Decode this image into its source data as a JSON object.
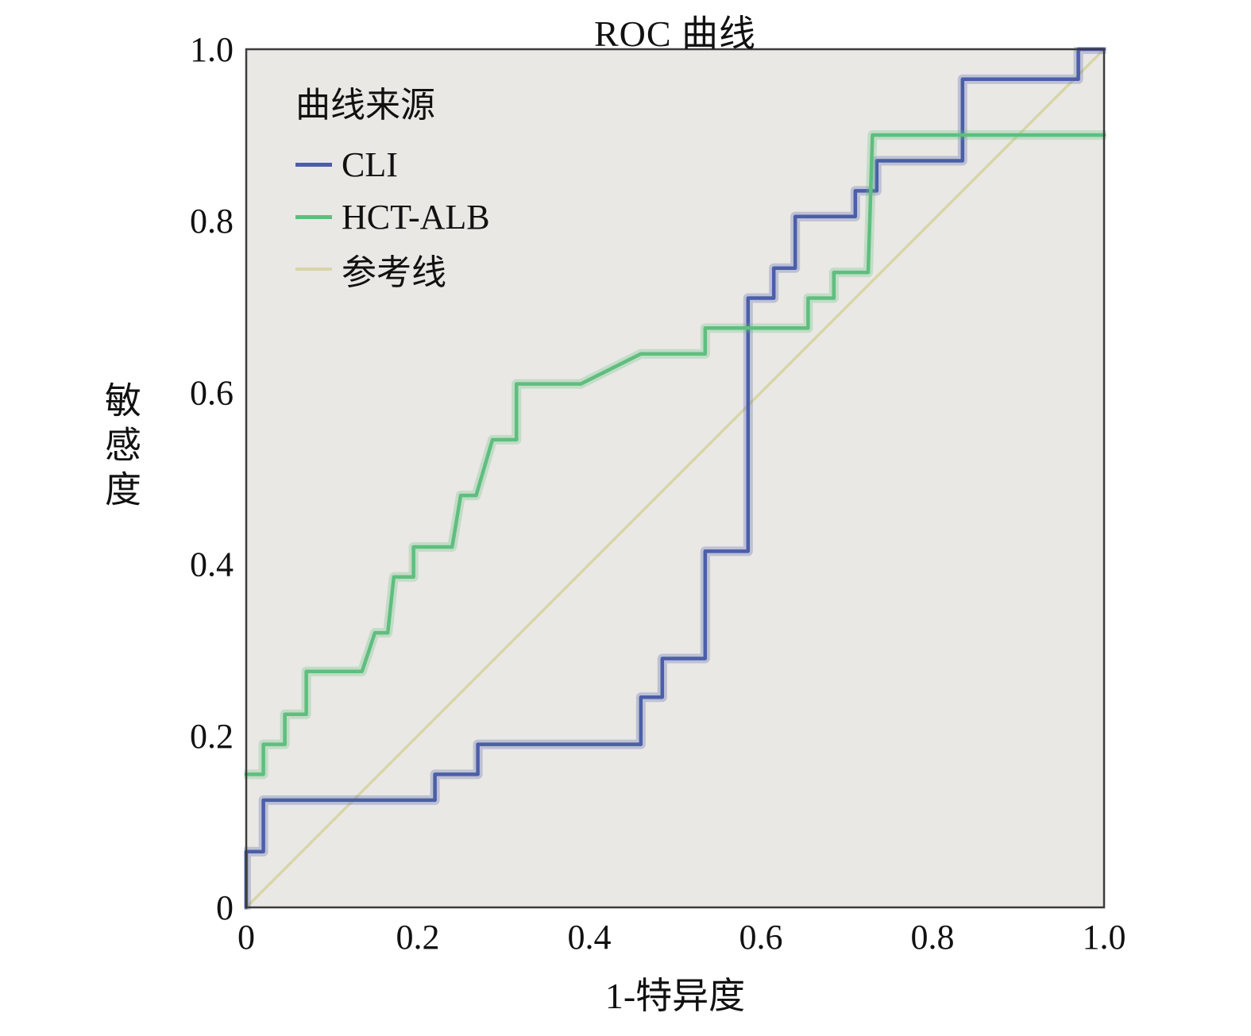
{
  "title": "ROC 曲线",
  "axes": {
    "x_label": "1-特异度",
    "y_label": "敏感度",
    "x_ticks": [
      "0",
      "0.2",
      "0.4",
      "0.6",
      "0.8",
      "1.0"
    ],
    "y_ticks": [
      "0",
      "0.2",
      "0.4",
      "0.6",
      "0.8",
      "1.0"
    ]
  },
  "legend": {
    "title": "曲线来源",
    "items": [
      {
        "label": "CLI",
        "color": "#4b5ea9"
      },
      {
        "label": "HCT-ALB",
        "color": "#5fbe7e"
      },
      {
        "label": "参考线",
        "color": "#d8d5a8"
      }
    ]
  },
  "chart_data": {
    "type": "line",
    "subtype": "roc-step-curves",
    "title": "ROC 曲线",
    "xlabel": "1-特异度",
    "ylabel": "敏感度",
    "xlim": [
      0,
      1
    ],
    "ylim": [
      0,
      1
    ],
    "x_ticks": [
      0,
      0.2,
      0.4,
      0.6,
      0.8,
      1.0
    ],
    "y_ticks": [
      0,
      0.2,
      0.4,
      0.6,
      0.8,
      1.0
    ],
    "grid": false,
    "legend_position": "top-left-inside",
    "legend_title": "曲线来源",
    "plot_bg": "#e9e8e4",
    "border_color": "#3c3c3c",
    "text_color": "#111111",
    "reference_line": {
      "name": "参考线",
      "color": "#d8d5a8",
      "points": [
        [
          0,
          0
        ],
        [
          1,
          1
        ]
      ]
    },
    "series": [
      {
        "name": "CLI",
        "color": "#4b5ea9",
        "points": [
          [
            0,
            0
          ],
          [
            0,
            0.065
          ],
          [
            0.02,
            0.065
          ],
          [
            0.02,
            0.125
          ],
          [
            0.22,
            0.125
          ],
          [
            0.22,
            0.155
          ],
          [
            0.27,
            0.155
          ],
          [
            0.27,
            0.19
          ],
          [
            0.46,
            0.19
          ],
          [
            0.46,
            0.245
          ],
          [
            0.485,
            0.245
          ],
          [
            0.485,
            0.29
          ],
          [
            0.535,
            0.29
          ],
          [
            0.535,
            0.415
          ],
          [
            0.585,
            0.415
          ],
          [
            0.585,
            0.71
          ],
          [
            0.615,
            0.71
          ],
          [
            0.615,
            0.745
          ],
          [
            0.64,
            0.745
          ],
          [
            0.64,
            0.805
          ],
          [
            0.71,
            0.805
          ],
          [
            0.71,
            0.835
          ],
          [
            0.735,
            0.835
          ],
          [
            0.735,
            0.87
          ],
          [
            0.835,
            0.87
          ],
          [
            0.835,
            0.965
          ],
          [
            0.97,
            0.965
          ],
          [
            0.97,
            1
          ],
          [
            1,
            1
          ]
        ]
      },
      {
        "name": "HCT-ALB",
        "color": "#5fbe7e",
        "points": [
          [
            0,
            0.155
          ],
          [
            0.02,
            0.155
          ],
          [
            0.02,
            0.19
          ],
          [
            0.045,
            0.19
          ],
          [
            0.045,
            0.225
          ],
          [
            0.07,
            0.225
          ],
          [
            0.07,
            0.275
          ],
          [
            0.135,
            0.275
          ],
          [
            0.15,
            0.32
          ],
          [
            0.165,
            0.32
          ],
          [
            0.172,
            0.385
          ],
          [
            0.195,
            0.385
          ],
          [
            0.195,
            0.42
          ],
          [
            0.24,
            0.42
          ],
          [
            0.25,
            0.48
          ],
          [
            0.268,
            0.48
          ],
          [
            0.287,
            0.545
          ],
          [
            0.315,
            0.545
          ],
          [
            0.315,
            0.61
          ],
          [
            0.39,
            0.61
          ],
          [
            0.46,
            0.645
          ],
          [
            0.535,
            0.645
          ],
          [
            0.535,
            0.675
          ],
          [
            0.655,
            0.675
          ],
          [
            0.655,
            0.71
          ],
          [
            0.685,
            0.71
          ],
          [
            0.685,
            0.74
          ],
          [
            0.725,
            0.74
          ],
          [
            0.73,
            0.9
          ],
          [
            1,
            0.9
          ]
        ]
      }
    ]
  }
}
